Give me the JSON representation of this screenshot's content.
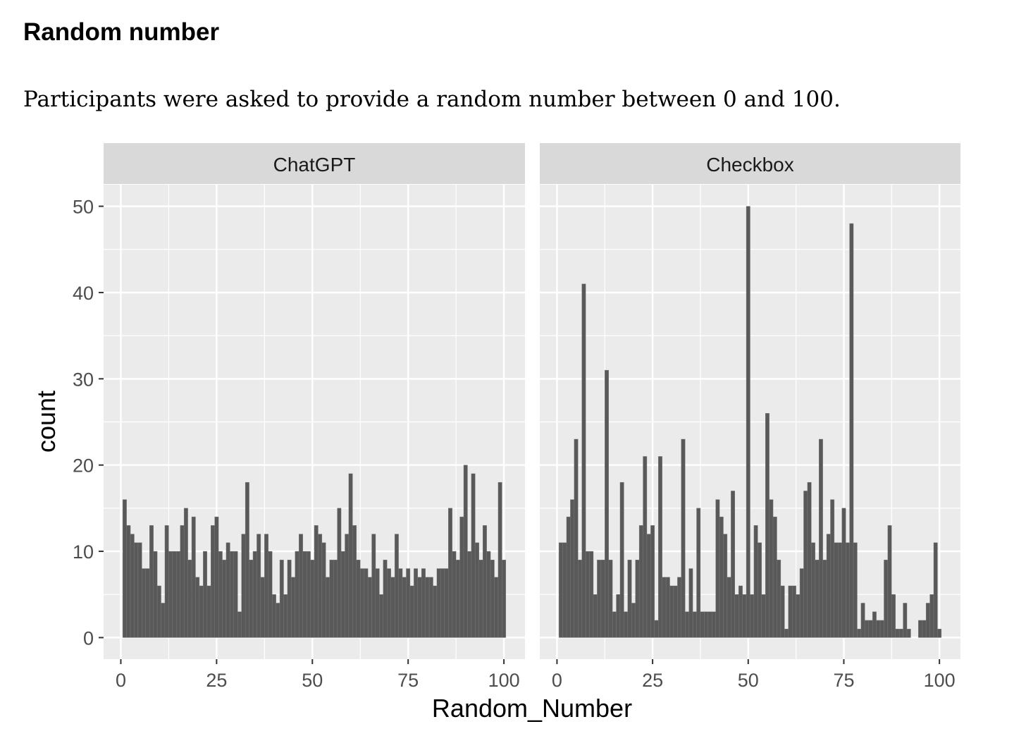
{
  "header": {
    "title": "Random number",
    "text": "Participants were asked to provide a random number between 0 and 100."
  },
  "chart_data": {
    "type": "histogram",
    "xlabel": "Random_Number",
    "ylabel": "count",
    "color": "#595959",
    "grid": true,
    "xlim": [
      -4.5,
      105.5
    ],
    "ylim": [
      -2.5,
      52.5
    ],
    "xticks": [
      0,
      25,
      50,
      75,
      100
    ],
    "yticks": [
      0,
      10,
      20,
      30,
      40,
      50
    ],
    "panels": [
      {
        "title": "ChatGPT",
        "bins": [
          0.5,
          1.5,
          2.5,
          3.5,
          4.5,
          5.5,
          6.5,
          7.5,
          8.5,
          9.5,
          10.5,
          11.5,
          12.5,
          13.5,
          14.5,
          15.5,
          16.5,
          17.5,
          18.5,
          19.5,
          20.5,
          21.5,
          22.5,
          23.5,
          24.5,
          25.5,
          26.5,
          27.5,
          28.5,
          29.5,
          30.5,
          31.5,
          32.5,
          33.5,
          34.5,
          35.5,
          36.5,
          37.5,
          38.5,
          39.5,
          40.5,
          41.5,
          42.5,
          43.5,
          44.5,
          45.5,
          46.5,
          47.5,
          48.5,
          49.5,
          50.5,
          51.5,
          52.5,
          53.5,
          54.5,
          55.5,
          56.5,
          57.5,
          58.5,
          59.5,
          60.5,
          61.5,
          62.5,
          63.5,
          64.5,
          65.5,
          66.5,
          67.5,
          68.5,
          69.5,
          70.5,
          71.5,
          72.5,
          73.5,
          74.5,
          75.5,
          76.5,
          77.5,
          78.5,
          79.5,
          80.5,
          81.5,
          82.5,
          83.5,
          84.5,
          85.5,
          86.5,
          87.5,
          88.5,
          89.5,
          90.5,
          91.5,
          92.5,
          93.5,
          94.5,
          95.5,
          96.5,
          97.5,
          98.5,
          99.5,
          100.5
        ],
        "values": [
          16,
          13,
          12,
          11,
          11,
          8,
          8,
          13,
          10,
          6,
          4,
          13,
          10,
          10,
          10,
          13,
          15,
          9,
          14,
          7,
          6,
          10,
          6,
          13,
          14,
          10,
          9,
          11,
          10,
          10,
          3,
          12,
          18,
          9,
          10,
          12,
          7,
          12,
          10,
          5,
          4,
          9,
          5,
          9,
          7,
          10,
          12,
          10,
          10,
          9,
          13,
          12,
          11,
          7,
          9,
          9,
          15,
          10,
          12,
          19,
          13,
          9,
          8,
          8,
          7,
          12,
          8,
          5,
          9,
          8,
          7,
          12,
          8,
          7,
          8,
          6,
          8,
          7,
          8,
          7,
          7,
          6,
          8,
          8,
          8,
          15,
          10,
          9,
          14,
          20,
          10,
          19,
          11,
          9,
          13,
          10,
          9,
          7,
          18,
          9
        ]
      },
      {
        "title": "Checkbox",
        "bins": [
          0.5,
          1.5,
          2.5,
          3.5,
          4.5,
          5.5,
          6.5,
          7.5,
          8.5,
          9.5,
          10.5,
          11.5,
          12.5,
          13.5,
          14.5,
          15.5,
          16.5,
          17.5,
          18.5,
          19.5,
          20.5,
          21.5,
          22.5,
          23.5,
          24.5,
          25.5,
          26.5,
          27.5,
          28.5,
          29.5,
          30.5,
          31.5,
          32.5,
          33.5,
          34.5,
          35.5,
          36.5,
          37.5,
          38.5,
          39.5,
          40.5,
          41.5,
          42.5,
          43.5,
          44.5,
          45.5,
          46.5,
          47.5,
          48.5,
          49.5,
          50.5,
          51.5,
          52.5,
          53.5,
          54.5,
          55.5,
          56.5,
          57.5,
          58.5,
          59.5,
          60.5,
          61.5,
          62.5,
          63.5,
          64.5,
          65.5,
          66.5,
          67.5,
          68.5,
          69.5,
          70.5,
          71.5,
          72.5,
          73.5,
          74.5,
          75.5,
          76.5,
          77.5,
          78.5,
          79.5,
          80.5,
          81.5,
          82.5,
          83.5,
          84.5,
          85.5,
          86.5,
          87.5,
          88.5,
          89.5,
          90.5,
          91.5,
          92.5,
          93.5,
          94.5,
          95.5,
          96.5,
          97.5,
          98.5,
          99.5,
          100.5
        ],
        "values": [
          11,
          11,
          14,
          16,
          23,
          9,
          41,
          10,
          10,
          5,
          9,
          9,
          31,
          9,
          3,
          5,
          18,
          3,
          9,
          4,
          9,
          13,
          21,
          12,
          13,
          2,
          21,
          7,
          7,
          6,
          6,
          7,
          23,
          3,
          8,
          3,
          15,
          3,
          3,
          3,
          3,
          16,
          14,
          12,
          7,
          17,
          5,
          6,
          5,
          50,
          5,
          13,
          11,
          5,
          26,
          16,
          14,
          9,
          6,
          1,
          6,
          6,
          5,
          8,
          17,
          18,
          11,
          9,
          23,
          9,
          12,
          16,
          11,
          11,
          15,
          11,
          48,
          11,
          1,
          4,
          2,
          2,
          3,
          2,
          2,
          9,
          13,
          5,
          1,
          1,
          4,
          1,
          0,
          0,
          2,
          2,
          4,
          5,
          11,
          1
        ]
      }
    ]
  }
}
